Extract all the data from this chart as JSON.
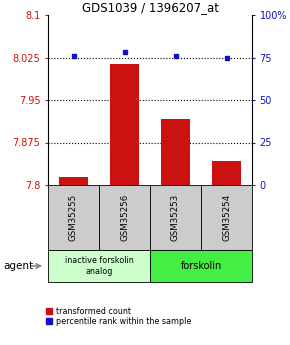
{
  "title": "GDS1039 / 1396207_at",
  "samples": [
    "GSM35255",
    "GSM35256",
    "GSM35253",
    "GSM35254"
  ],
  "bar_values": [
    7.814,
    8.013,
    7.916,
    7.843
  ],
  "percentile_values": [
    76,
    78,
    76,
    75
  ],
  "bar_color": "#cc1111",
  "dot_color": "#1111cc",
  "ylim_left": [
    7.8,
    8.1
  ],
  "ylim_right": [
    0,
    100
  ],
  "yticks_left": [
    7.8,
    7.875,
    7.95,
    8.025,
    8.1
  ],
  "yticks_right": [
    0,
    25,
    50,
    75,
    100
  ],
  "ytick_labels_left": [
    "7.8",
    "7.875",
    "7.95",
    "8.025",
    "8.1"
  ],
  "ytick_labels_right": [
    "0",
    "25",
    "50",
    "75",
    "100%"
  ],
  "hlines": [
    7.875,
    7.95,
    8.025
  ],
  "groups": [
    {
      "label": "inactive forskolin\nanalog",
      "color": "#ccffcc"
    },
    {
      "label": "forskolin",
      "color": "#44ee44"
    }
  ],
  "agent_label": "agent",
  "legend_bar_label": "transformed count",
  "legend_dot_label": "percentile rank within the sample",
  "bar_width": 0.55,
  "sample_box_color": "#cccccc",
  "left_tick_color": "#cc1111",
  "right_tick_color": "#1111cc"
}
